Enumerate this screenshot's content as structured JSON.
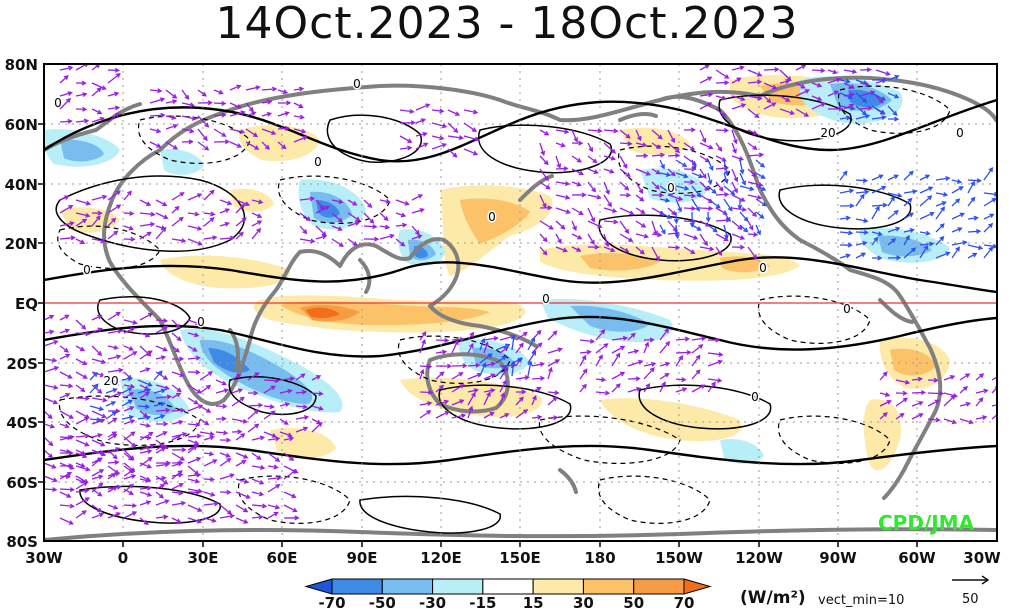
{
  "title": "14Oct.2023 - 18Oct.2023",
  "lat_labels": [
    "80N",
    "60N",
    "40N",
    "20N",
    "EQ",
    "20S",
    "40S",
    "60S",
    "80S"
  ],
  "lon_labels": [
    "30W",
    "0",
    "30E",
    "60E",
    "90E",
    "120E",
    "150E",
    "180",
    "150W",
    "120W",
    "90W",
    "60W",
    "30W"
  ],
  "colorbar": {
    "ticks": [
      "-70",
      "-50",
      "-30",
      "-15",
      "15",
      "30",
      "50",
      "70"
    ],
    "colors": [
      "#1f56d9",
      "#3f8ae6",
      "#79bdf0",
      "#b8eef8",
      "#ffffff",
      "#fde9a8",
      "#fbc26a",
      "#f79c45",
      "#f46d1a"
    ],
    "units": "(W/m²)",
    "vect_min": "vect_min=10",
    "ref_vector": "50"
  },
  "credit": "CPD/JMA",
  "contour_labels": [
    "0",
    "0",
    "0",
    "0",
    "0",
    "0",
    "0",
    "0",
    "0",
    "0",
    "0",
    "0",
    "20",
    "20"
  ],
  "colors": {
    "coast": "#808080",
    "vector": "#9a1de0",
    "vector_strong": "#2b50ee",
    "equator": "#ee3333",
    "contour": "#000000",
    "credit": "#2fe82f"
  }
}
